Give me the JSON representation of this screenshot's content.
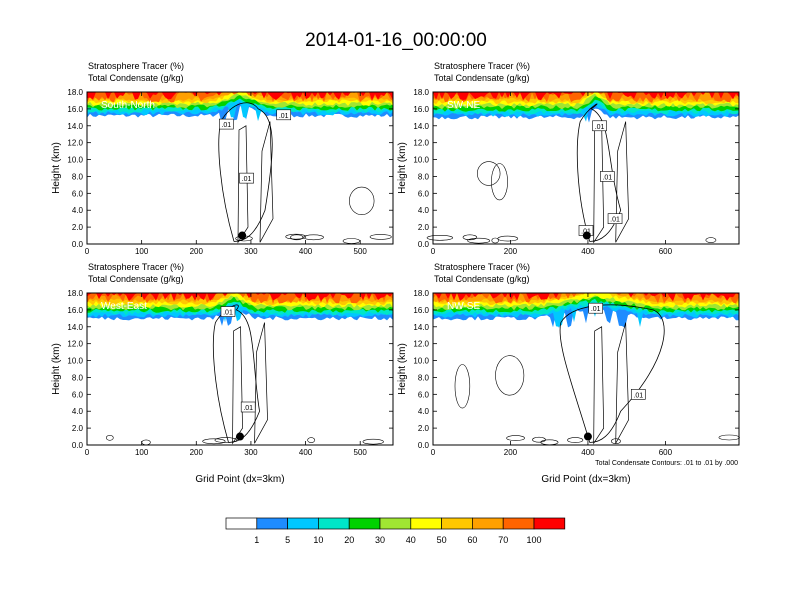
{
  "title": "2014-01-16_00:00:00",
  "colorbar": {
    "labels": [
      "1",
      "5",
      "10",
      "20",
      "30",
      "40",
      "50",
      "60",
      "70",
      "100"
    ],
    "colors": [
      "#ffffff",
      "#1e8cff",
      "#00c8ff",
      "#00e6c8",
      "#00d200",
      "#a0e632",
      "#ffff00",
      "#ffc800",
      "#ffa000",
      "#ff6400",
      "#ff0000"
    ]
  },
  "contour_note": "Total Condensate Contours: .01 to .01 by .000",
  "chart_data": [
    {
      "type": "contour",
      "panel_label": "South-North",
      "title_lines": [
        "Stratosphere Tracer   (%)",
        "Total Condensate   (g/kg)"
      ],
      "ylabel": "Height (km)",
      "xlabel": "",
      "xlim": [
        0,
        560
      ],
      "ylim": [
        0,
        18
      ],
      "xticks": [
        "0",
        "100",
        "200",
        "300",
        "400",
        "500"
      ],
      "xtick_values": [
        0,
        100,
        200,
        300,
        400,
        500
      ],
      "yticks": [
        "0.0",
        "2.0",
        "4.0",
        "6.0",
        "8.0",
        "10.0",
        "12.0",
        "14.0",
        "16.0",
        "18.0"
      ],
      "tracer_base_km": 15.2,
      "storm_x": 280,
      "storm_x_range": [
        245,
        350
      ],
      "marker": {
        "x": 284,
        "y": 1.0
      },
      "contour_labels": [
        {
          "text": ".01",
          "x": 255,
          "y": 14.2
        },
        {
          "text": ".01",
          "x": 292,
          "y": 7.8
        },
        {
          "text": ".01",
          "x": 360,
          "y": 15.3
        }
      ]
    },
    {
      "type": "contour",
      "panel_label": "SW-NE",
      "title_lines": [
        "Stratosphere Tracer   (%)",
        "Total Condensate   (g/kg)"
      ],
      "ylabel": "Height (km)",
      "xlabel": "",
      "xlim": [
        0,
        790
      ],
      "ylim": [
        0,
        18
      ],
      "xticks": [
        "0",
        "200",
        "400",
        "600"
      ],
      "xtick_values": [
        0,
        200,
        400,
        600
      ],
      "yticks": [
        "0.0",
        "2.0",
        "4.0",
        "6.0",
        "8.0",
        "10.0",
        "12.0",
        "14.0",
        "16.0",
        "18.0"
      ],
      "tracer_base_km": 15.0,
      "storm_x": 420,
      "storm_x_range": [
        380,
        460
      ],
      "marker": {
        "x": 397,
        "y": 1.0
      },
      "contour_labels": [
        {
          "text": ".01",
          "x": 430,
          "y": 14.0
        },
        {
          "text": ".01",
          "x": 450,
          "y": 8.0
        },
        {
          "text": ".01",
          "x": 470,
          "y": 3.0
        },
        {
          "text": ".01",
          "x": 395,
          "y": 1.6
        }
      ]
    },
    {
      "type": "contour",
      "panel_label": "West-East",
      "title_lines": [
        "Stratosphere Tracer   (%)",
        "Total Condensate   (g/kg)"
      ],
      "ylabel": "Height (km)",
      "xlabel": "Grid Point (dx=3km)",
      "xlim": [
        0,
        560
      ],
      "ylim": [
        0,
        18
      ],
      "xticks": [
        "0",
        "100",
        "200",
        "300",
        "400",
        "500"
      ],
      "xtick_values": [
        0,
        100,
        200,
        300,
        400,
        500
      ],
      "yticks": [
        "0.0",
        "2.0",
        "4.0",
        "6.0",
        "8.0",
        "10.0",
        "12.0",
        "14.0",
        "16.0",
        "18.0"
      ],
      "tracer_base_km": 15.0,
      "storm_x": 270,
      "storm_x_range": [
        235,
        310
      ],
      "marker": {
        "x": 280,
        "y": 1.0
      },
      "contour_labels": [
        {
          "text": ".01",
          "x": 258,
          "y": 15.8
        },
        {
          "text": ".01",
          "x": 295,
          "y": 4.5
        }
      ]
    },
    {
      "type": "contour",
      "panel_label": "NW-SE",
      "title_lines": [
        "Stratosphere Tracer   (%)",
        "Total Condensate   (g/kg)"
      ],
      "ylabel": "Height (km)",
      "xlabel": "Grid Point (dx=3km)",
      "xlim": [
        0,
        790
      ],
      "ylim": [
        0,
        18
      ],
      "xticks": [
        "0",
        "200",
        "400",
        "600"
      ],
      "xtick_values": [
        0,
        200,
        400,
        600
      ],
      "yticks": [
        "0.0",
        "2.0",
        "4.0",
        "6.0",
        "8.0",
        "10.0",
        "12.0",
        "14.0",
        "16.0",
        "18.0"
      ],
      "tracer_base_km": 15.0,
      "storm_x": 420,
      "storm_x_range": [
        330,
        620
      ],
      "marker": {
        "x": 400,
        "y": 1.0
      },
      "contour_labels": [
        {
          "text": ".01",
          "x": 420,
          "y": 16.2
        },
        {
          "text": ".01",
          "x": 530,
          "y": 6.0
        }
      ]
    }
  ]
}
